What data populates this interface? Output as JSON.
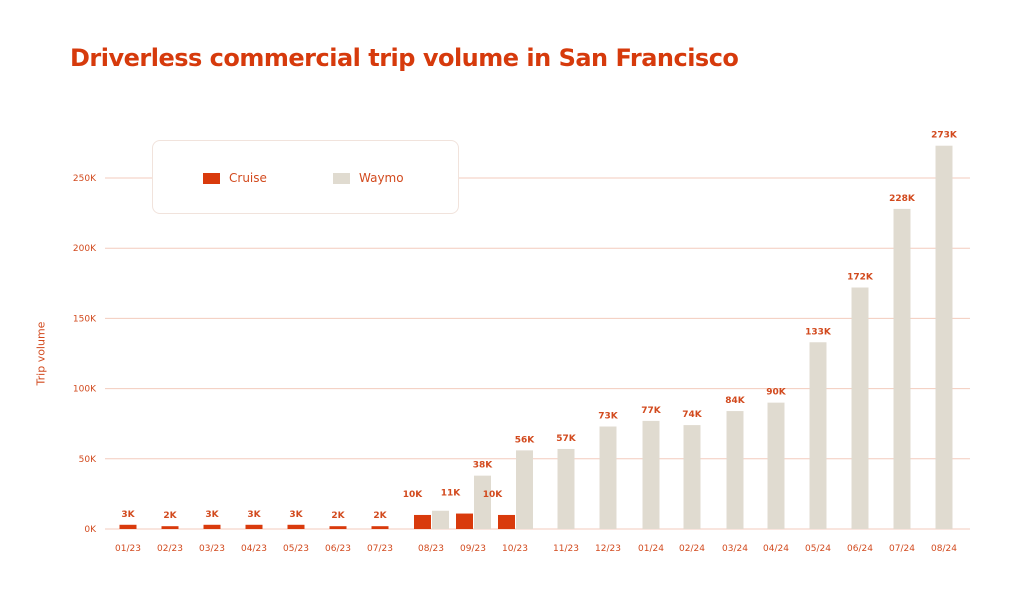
{
  "chart_data": {
    "type": "bar",
    "title": "Driverless commercial trip volume in San Francisco",
    "xlabel": "",
    "ylabel": "Trip volume",
    "ylim": [
      0,
      250000
    ],
    "yticks": [
      0,
      50000,
      100000,
      150000,
      200000,
      250000
    ],
    "ytick_labels": [
      "0K",
      "50K",
      "100K",
      "150K",
      "200K",
      "250K"
    ],
    "grid": true,
    "legend_placement": "top-left",
    "categories": [
      "01/23",
      "02/23",
      "03/23",
      "04/23",
      "05/23",
      "06/23",
      "07/23",
      "08/23",
      "09/23",
      "10/23",
      "11/23",
      "12/23",
      "01/24",
      "02/24",
      "03/24",
      "04/24",
      "05/24",
      "06/24",
      "07/24",
      "08/24"
    ],
    "series": [
      {
        "name": "Cruise",
        "color": "#d93a0c",
        "values": [
          3000,
          2000,
          3000,
          3000,
          3000,
          2000,
          2000,
          10000,
          11000,
          10000,
          null,
          null,
          null,
          null,
          null,
          null,
          null,
          null,
          null,
          null
        ],
        "labels": [
          "3K",
          "2K",
          "3K",
          "3K",
          "3K",
          "2K",
          "2K",
          "10K",
          "11K",
          "10K",
          null,
          null,
          null,
          null,
          null,
          null,
          null,
          null,
          null,
          null
        ]
      },
      {
        "name": "Waymo",
        "color": "#e0dbd0",
        "values": [
          null,
          null,
          null,
          null,
          null,
          null,
          null,
          13000,
          38000,
          56000,
          57000,
          73000,
          77000,
          74000,
          84000,
          90000,
          133000,
          172000,
          228000,
          273000
        ],
        "labels": [
          null,
          null,
          null,
          null,
          null,
          null,
          null,
          null,
          "38K",
          "56K",
          "57K",
          "73K",
          "77K",
          "74K",
          "84K",
          "90K",
          "133K",
          "172K",
          "228K",
          "273K"
        ]
      }
    ]
  }
}
